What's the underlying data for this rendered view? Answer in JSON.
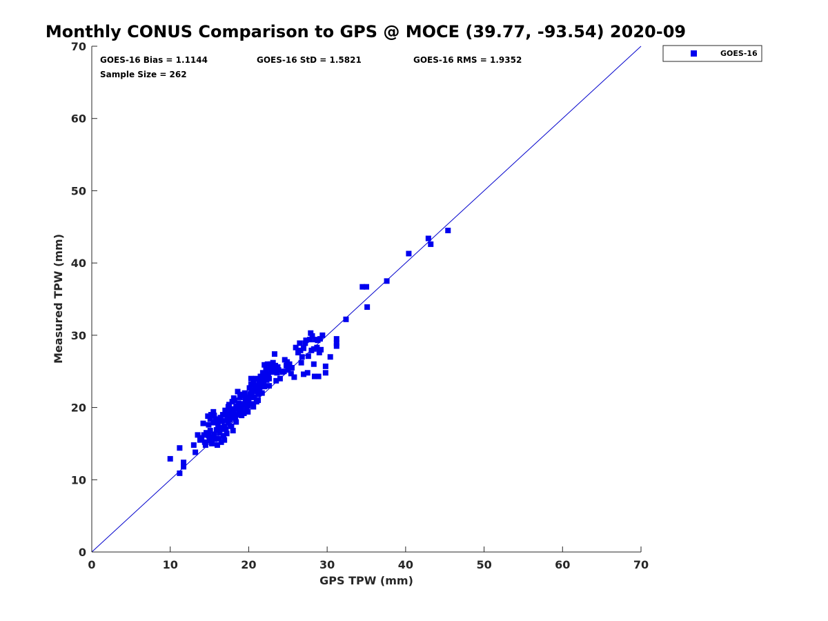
{
  "chart_data": {
    "type": "scatter",
    "title": "Monthly CONUS Comparison to GPS @ MOCE (39.77, -93.54) 2020-09",
    "xlabel": "GPS TPW (mm)",
    "ylabel": "Measured TPW (mm)",
    "xlim": [
      0,
      70
    ],
    "ylim": [
      0,
      70
    ],
    "xticks": [
      0,
      10,
      20,
      30,
      40,
      50,
      60,
      70
    ],
    "yticks": [
      0,
      10,
      20,
      30,
      40,
      50,
      60,
      70
    ],
    "grid": false,
    "legend_position": "top-right, outside plot",
    "annotations": {
      "bias": "GOES-16 Bias = 1.1144",
      "std": "GOES-16 StD = 1.5821",
      "rms": "GOES-16 RMS = 1.9352",
      "sample_size": "Sample Size = 262"
    },
    "reference_line": {
      "x": [
        0,
        70
      ],
      "y": [
        0,
        70
      ],
      "color": "#0000cc"
    },
    "series": [
      {
        "name": "GOES-16",
        "color": "#0000ee",
        "marker": "square",
        "points": [
          [
            10.0,
            12.9
          ],
          [
            11.2,
            14.4
          ],
          [
            11.2,
            10.9
          ],
          [
            11.7,
            12.4
          ],
          [
            11.7,
            11.8
          ],
          [
            13.0,
            14.8
          ],
          [
            13.2,
            13.8
          ],
          [
            13.5,
            16.2
          ],
          [
            13.8,
            15.5
          ],
          [
            14.0,
            15.8
          ],
          [
            14.2,
            17.8
          ],
          [
            14.3,
            16.2
          ],
          [
            14.4,
            15.2
          ],
          [
            14.5,
            14.8
          ],
          [
            14.6,
            16.5
          ],
          [
            14.8,
            18.8
          ],
          [
            14.9,
            17.6
          ],
          [
            15.0,
            15.4
          ],
          [
            15.1,
            16.8
          ],
          [
            15.2,
            19.0
          ],
          [
            15.3,
            15.0
          ],
          [
            15.5,
            17.9
          ],
          [
            15.5,
            19.4
          ],
          [
            15.6,
            16.3
          ],
          [
            15.7,
            15.6
          ],
          [
            15.8,
            18.4
          ],
          [
            15.9,
            16.9
          ],
          [
            16.0,
            14.8
          ],
          [
            16.1,
            17.5
          ],
          [
            16.2,
            15.7
          ],
          [
            16.3,
            16.5
          ],
          [
            16.4,
            18.6
          ],
          [
            16.5,
            15.2
          ],
          [
            16.6,
            17.2
          ],
          [
            16.7,
            19.0
          ],
          [
            16.8,
            16.1
          ],
          [
            16.9,
            15.5
          ],
          [
            17.0,
            18.2
          ],
          [
            17.0,
            19.6
          ],
          [
            17.1,
            17.0
          ],
          [
            17.2,
            16.4
          ],
          [
            17.3,
            18.7
          ],
          [
            17.4,
            17.8
          ],
          [
            17.5,
            19.9
          ],
          [
            17.5,
            20.4
          ],
          [
            17.6,
            18.3
          ],
          [
            17.7,
            19.3
          ],
          [
            17.8,
            17.4
          ],
          [
            17.9,
            20.8
          ],
          [
            18.0,
            18.9
          ],
          [
            18.0,
            16.8
          ],
          [
            18.1,
            19.6
          ],
          [
            18.2,
            21.0
          ],
          [
            18.3,
            18.5
          ],
          [
            18.4,
            20.2
          ],
          [
            18.5,
            19.0
          ],
          [
            18.6,
            22.2
          ],
          [
            18.7,
            20.6
          ],
          [
            18.8,
            19.4
          ],
          [
            18.9,
            21.4
          ],
          [
            19.0,
            20.0
          ],
          [
            19.1,
            18.9
          ],
          [
            19.2,
            21.7
          ],
          [
            19.3,
            20.4
          ],
          [
            19.4,
            19.2
          ],
          [
            19.5,
            22.0
          ],
          [
            19.6,
            20.8
          ],
          [
            19.7,
            19.8
          ],
          [
            19.8,
            21.2
          ],
          [
            19.9,
            19.4
          ],
          [
            20.0,
            20.9
          ],
          [
            20.1,
            22.7
          ],
          [
            20.2,
            21.6
          ],
          [
            20.3,
            23.2
          ],
          [
            20.3,
            24.0
          ],
          [
            20.4,
            22.0
          ],
          [
            20.5,
            20.5
          ],
          [
            20.6,
            23.5
          ],
          [
            20.7,
            21.4
          ],
          [
            20.8,
            22.6
          ],
          [
            20.9,
            24.0
          ],
          [
            21.0,
            20.8
          ],
          [
            21.0,
            23.0
          ],
          [
            21.1,
            22.2
          ],
          [
            21.2,
            21.0
          ],
          [
            21.3,
            23.7
          ],
          [
            21.4,
            22.5
          ],
          [
            21.5,
            24.3
          ],
          [
            21.6,
            23.1
          ],
          [
            21.7,
            22.0
          ],
          [
            21.8,
            24.8
          ],
          [
            21.9,
            23.6
          ],
          [
            22.0,
            25.9
          ],
          [
            22.0,
            22.9
          ],
          [
            22.1,
            24.2
          ],
          [
            22.2,
            25.2
          ],
          [
            22.3,
            23.8
          ],
          [
            22.4,
            26.0
          ],
          [
            22.5,
            24.7
          ],
          [
            22.6,
            24.0
          ],
          [
            22.7,
            25.5
          ],
          [
            22.8,
            26.0
          ],
          [
            22.9,
            24.9
          ],
          [
            23.0,
            25.5
          ],
          [
            23.1,
            26.2
          ],
          [
            23.2,
            25.0
          ],
          [
            23.3,
            27.4
          ],
          [
            23.4,
            25.8
          ],
          [
            23.5,
            23.7
          ],
          [
            23.6,
            24.8
          ],
          [
            23.7,
            25.6
          ],
          [
            24.0,
            24.0
          ],
          [
            24.5,
            25.0
          ],
          [
            24.6,
            26.6
          ],
          [
            24.8,
            25.8
          ],
          [
            25.0,
            25.2
          ],
          [
            25.2,
            26.0
          ],
          [
            25.5,
            25.5
          ],
          [
            25.8,
            24.2
          ],
          [
            26.0,
            28.3
          ],
          [
            26.3,
            27.6
          ],
          [
            26.5,
            28.9
          ],
          [
            26.7,
            26.2
          ],
          [
            26.8,
            27.0
          ],
          [
            27.0,
            28.2
          ],
          [
            27.0,
            24.6
          ],
          [
            27.2,
            28.9
          ],
          [
            27.5,
            24.8
          ],
          [
            27.6,
            27.1
          ],
          [
            27.8,
            29.4
          ],
          [
            27.9,
            30.3
          ],
          [
            28.0,
            27.9
          ],
          [
            28.1,
            29.9
          ],
          [
            28.3,
            26.0
          ],
          [
            28.4,
            24.3
          ],
          [
            28.5,
            29.4
          ],
          [
            28.7,
            28.3
          ],
          [
            28.9,
            24.3
          ],
          [
            29.0,
            27.6
          ],
          [
            29.1,
            29.5
          ],
          [
            29.2,
            28.0
          ],
          [
            29.4,
            30.0
          ],
          [
            29.8,
            24.8
          ],
          [
            29.8,
            25.7
          ],
          [
            30.4,
            27.0
          ],
          [
            31.2,
            28.5
          ],
          [
            31.2,
            29.5
          ],
          [
            31.2,
            28.9
          ],
          [
            32.4,
            32.2
          ],
          [
            34.5,
            36.7
          ],
          [
            35.0,
            36.7
          ],
          [
            35.1,
            33.9
          ],
          [
            37.6,
            37.5
          ],
          [
            40.4,
            41.3
          ],
          [
            42.9,
            43.4
          ],
          [
            43.2,
            42.6
          ],
          [
            45.4,
            44.5
          ],
          [
            16.9,
            17.4
          ],
          [
            17.3,
            19.1
          ],
          [
            18.2,
            19.8
          ],
          [
            18.6,
            20.0
          ],
          [
            19.1,
            20.5
          ],
          [
            19.6,
            21.3
          ],
          [
            20.0,
            21.4
          ],
          [
            20.4,
            22.4
          ],
          [
            20.9,
            22.8
          ],
          [
            21.3,
            22.6
          ],
          [
            21.8,
            23.3
          ],
          [
            22.3,
            24.6
          ],
          [
            15.4,
            15.9
          ],
          [
            14.9,
            16.1
          ],
          [
            16.4,
            17.0
          ],
          [
            17.8,
            18.6
          ],
          [
            18.4,
            18.0
          ],
          [
            19.0,
            19.5
          ],
          [
            19.9,
            20.2
          ],
          [
            20.6,
            20.1
          ],
          [
            21.2,
            21.8
          ],
          [
            22.6,
            23.0
          ],
          [
            23.8,
            25.2
          ],
          [
            24.3,
            24.9
          ],
          [
            24.9,
            26.3
          ],
          [
            25.4,
            24.7
          ],
          [
            26.6,
            27.9
          ],
          [
            27.3,
            29.3
          ],
          [
            28.8,
            29.3
          ],
          [
            28.3,
            28.1
          ],
          [
            15.1,
            18.4
          ],
          [
            15.6,
            18.9
          ],
          [
            16.0,
            18.0
          ],
          [
            16.6,
            18.1
          ],
          [
            17.4,
            20.1
          ],
          [
            18.1,
            21.3
          ],
          [
            18.9,
            21.8
          ],
          [
            19.4,
            20.5
          ],
          [
            20.2,
            21.9
          ],
          [
            21.6,
            24.0
          ]
        ]
      }
    ]
  }
}
